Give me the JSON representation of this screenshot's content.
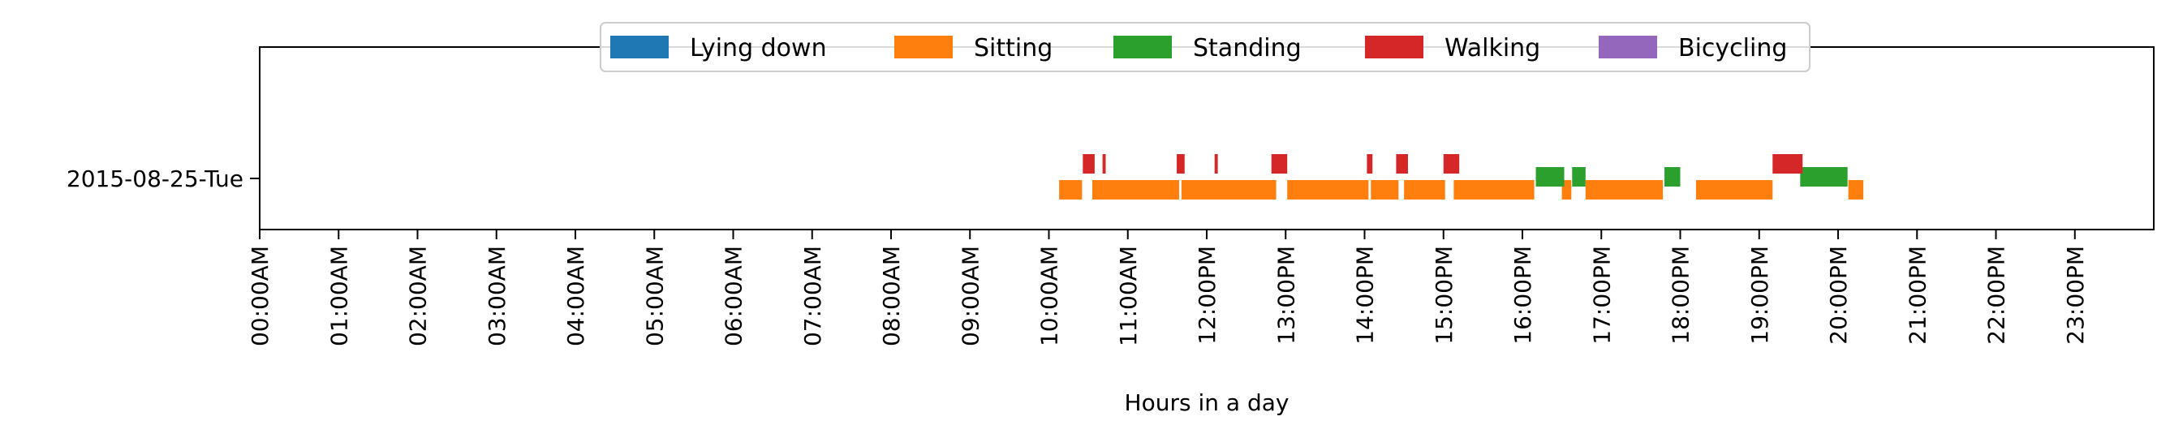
{
  "chart_data": {
    "type": "timeline",
    "title": "",
    "xlabel": "Hours in a day",
    "ylabel": "",
    "xlim": [
      0,
      24
    ],
    "grid": false,
    "legend_placement": "top-center",
    "row_labels": [
      "2015-08-25-Tue"
    ],
    "x_tick_labels": [
      "00:00AM",
      "01:00AM",
      "02:00AM",
      "03:00AM",
      "04:00AM",
      "05:00AM",
      "06:00AM",
      "07:00AM",
      "08:00AM",
      "09:00AM",
      "10:00AM",
      "11:00AM",
      "12:00PM",
      "13:00PM",
      "14:00PM",
      "15:00PM",
      "16:00PM",
      "17:00PM",
      "18:00PM",
      "19:00PM",
      "20:00PM",
      "21:00PM",
      "22:00PM",
      "23:00PM"
    ],
    "series": [
      {
        "name": "Lying down",
        "color": "#1f77b4",
        "lane": 0,
        "intervals": []
      },
      {
        "name": "Sitting",
        "color": "#ff7f0e",
        "lane": 0,
        "intervals": [
          [
            10.13,
            10.42
          ],
          [
            10.55,
            11.65
          ],
          [
            11.68,
            12.88
          ],
          [
            13.02,
            14.05
          ],
          [
            14.08,
            14.43
          ],
          [
            14.5,
            15.02
          ],
          [
            15.13,
            16.15
          ],
          [
            16.5,
            16.62
          ],
          [
            16.8,
            17.78
          ],
          [
            18.2,
            19.17
          ],
          [
            20.13,
            20.32
          ]
        ]
      },
      {
        "name": "Standing",
        "color": "#2ca02c",
        "lane": 1,
        "intervals": [
          [
            16.17,
            16.53
          ],
          [
            16.63,
            16.8
          ],
          [
            17.8,
            18.0
          ],
          [
            19.52,
            20.12
          ]
        ]
      },
      {
        "name": "Walking",
        "color": "#d62728",
        "lane": 2,
        "intervals": [
          [
            10.43,
            10.58
          ],
          [
            10.68,
            10.72
          ],
          [
            11.62,
            11.72
          ],
          [
            12.1,
            12.14
          ],
          [
            12.82,
            13.02
          ],
          [
            14.03,
            14.1
          ],
          [
            14.4,
            14.55
          ],
          [
            15.0,
            15.2
          ],
          [
            19.17,
            19.55
          ]
        ]
      },
      {
        "name": "Bicycling",
        "color": "#9467bd",
        "lane": 0,
        "intervals": []
      }
    ]
  }
}
